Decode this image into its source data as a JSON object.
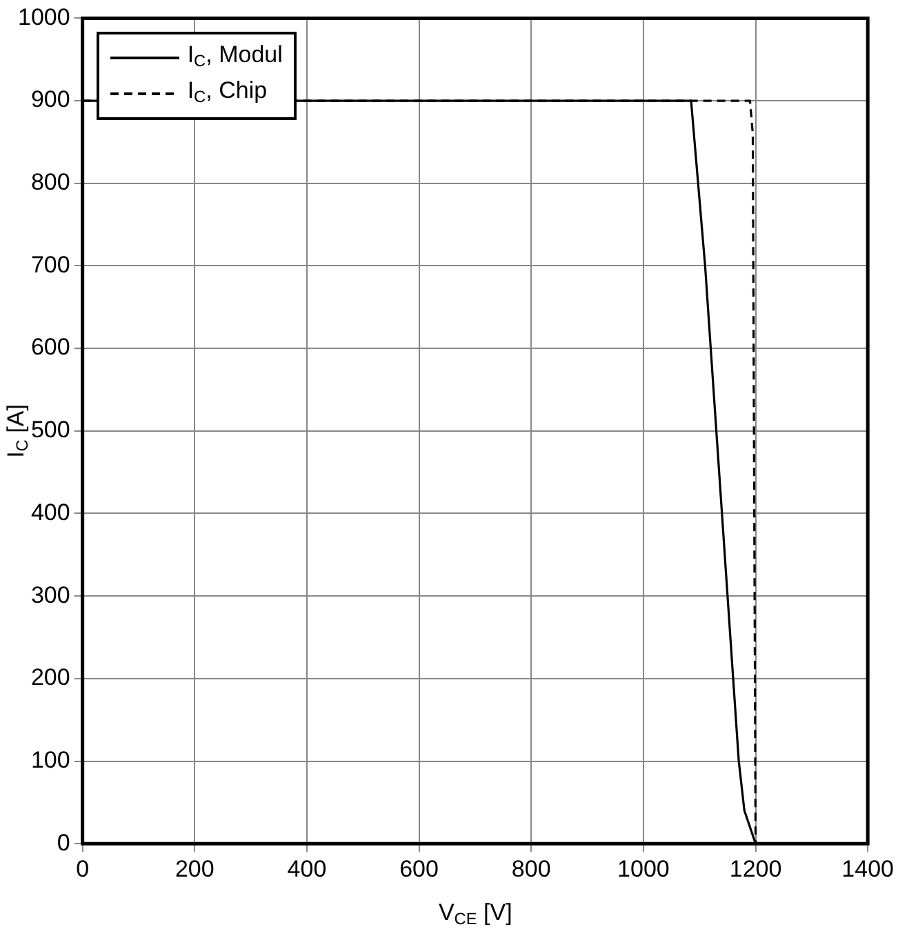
{
  "chart_data": {
    "type": "line",
    "xlabel": "V$_{CE}$  [V]",
    "ylabel": "I$_{C}$ [A]",
    "xlim": [
      0,
      1400
    ],
    "xticks": [
      0,
      200,
      400,
      600,
      800,
      1000,
      1200,
      1400
    ],
    "ylim": [
      0,
      1000
    ],
    "yticks": [
      0,
      100,
      200,
      300,
      400,
      500,
      600,
      700,
      800,
      900,
      1000
    ],
    "grid": true,
    "legend": "top left",
    "marker": "none",
    "series": [
      {
        "name": "I$_{C}$, Modul",
        "color": "#000000",
        "line_style": "solid",
        "x": [
          0,
          1085,
          1110,
          1140,
          1160,
          1170,
          1180,
          1200
        ],
        "values": [
          900,
          900,
          700,
          400,
          200,
          100,
          40,
          0
        ]
      },
      {
        "name": "I$_{C}$, Chip",
        "color": "#000000",
        "line_style": "dashed",
        "x": [
          0,
          1190,
          1195,
          1200
        ],
        "values": [
          900,
          900,
          860,
          0
        ]
      }
    ]
  }
}
